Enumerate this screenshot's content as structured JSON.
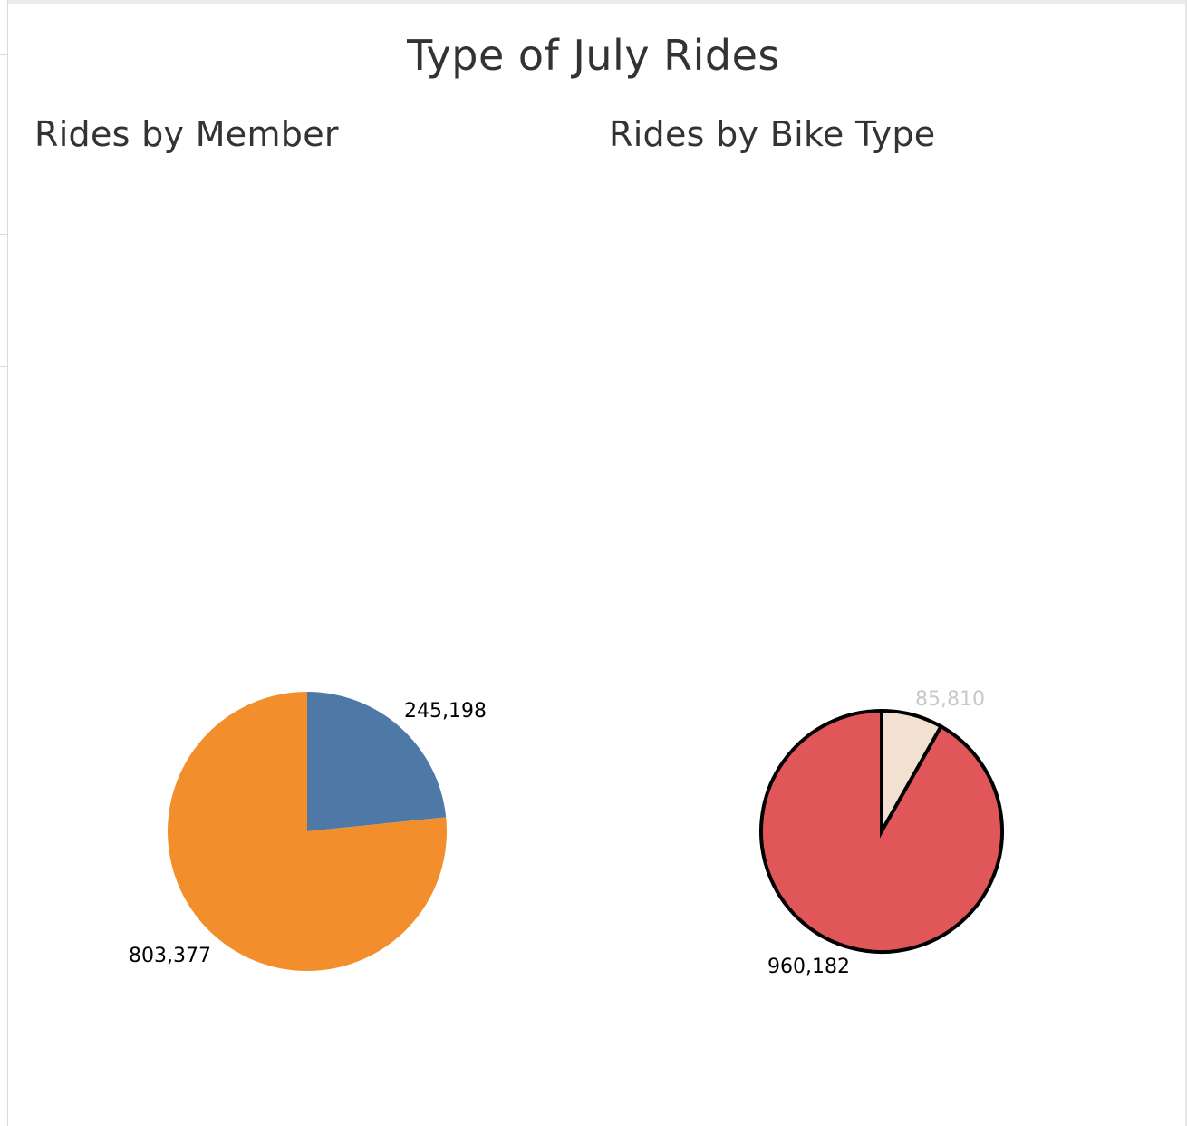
{
  "dashboard": {
    "title": "Type of July Rides"
  },
  "colors": {
    "member_blue": "#4e79a7",
    "member_orange": "#f28e2b",
    "bike_red": "#e15759",
    "bike_beige": "#f2e1d0",
    "label_dark": "#000000",
    "label_light": "#c8c8c8",
    "outline": "#000000"
  },
  "chart_data": [
    {
      "type": "pie",
      "title": "Rides by Member",
      "slices": [
        {
          "value": 245198,
          "label": "245,198",
          "color": "#4e79a7"
        },
        {
          "value": 803377,
          "label": "803,377",
          "color": "#f28e2b"
        }
      ],
      "outlined": false
    },
    {
      "type": "pie",
      "title": "Rides by Bike Type",
      "slices": [
        {
          "value": 85810,
          "label": "85,810",
          "color": "#f2e1d0",
          "label_color": "#c8c8c8"
        },
        {
          "value": 960182,
          "label": "960,182",
          "color": "#e15759"
        }
      ],
      "outlined": true
    }
  ]
}
